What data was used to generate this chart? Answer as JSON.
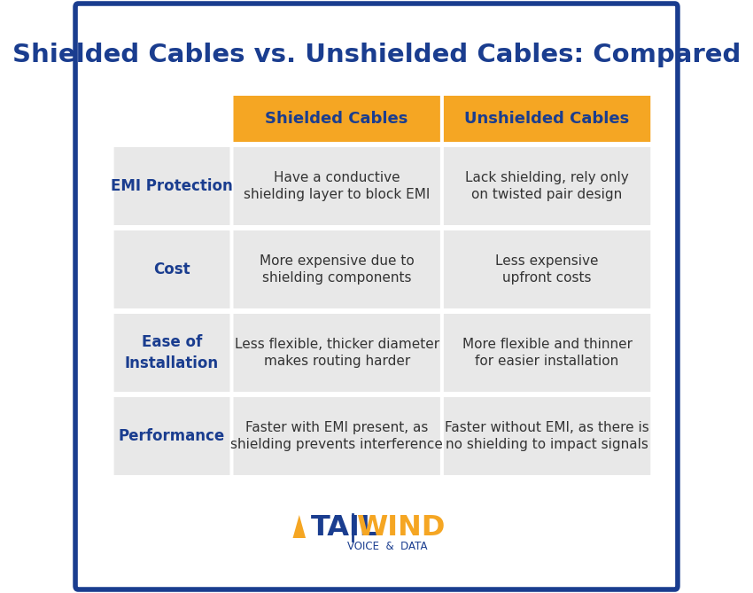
{
  "title": "Shielded Cables vs. Unshielded Cables: Compared",
  "title_color": "#1a3d8f",
  "background_color": "#ffffff",
  "border_color": "#1a3d8f",
  "header_bg_color": "#f5a623",
  "header_text_color": "#1a3d8f",
  "row_bg_color": "#e8e8e8",
  "row_label_color": "#1a3d8f",
  "cell_text_color": "#333333",
  "col1_header": "Shielded Cables",
  "col2_header": "Unshielded Cables",
  "rows": [
    {
      "label": "EMI Protection",
      "col1": "Have a conductive\nshielding layer to block EMI",
      "col2": "Lack shielding, rely only\non twisted pair design"
    },
    {
      "label": "Cost",
      "col1": "More expensive due to\nshielding components",
      "col2": "Less expensive\nupfront costs"
    },
    {
      "label": "Ease of\nInstallation",
      "col1": "Less flexible, thicker diameter\nmakes routing harder",
      "col2": "More flexible and thinner\nfor easier installation"
    },
    {
      "label": "Performance",
      "col1": "Faster with EMI present, as\nshielding prevents interference",
      "col2": "Faster without EMI, as there is\nno shielding to impact signals"
    }
  ],
  "logo_tail_color": "#1a3d8f",
  "logo_wind_color": "#f5a623",
  "logo_sub": "VOICE  &  DATA"
}
